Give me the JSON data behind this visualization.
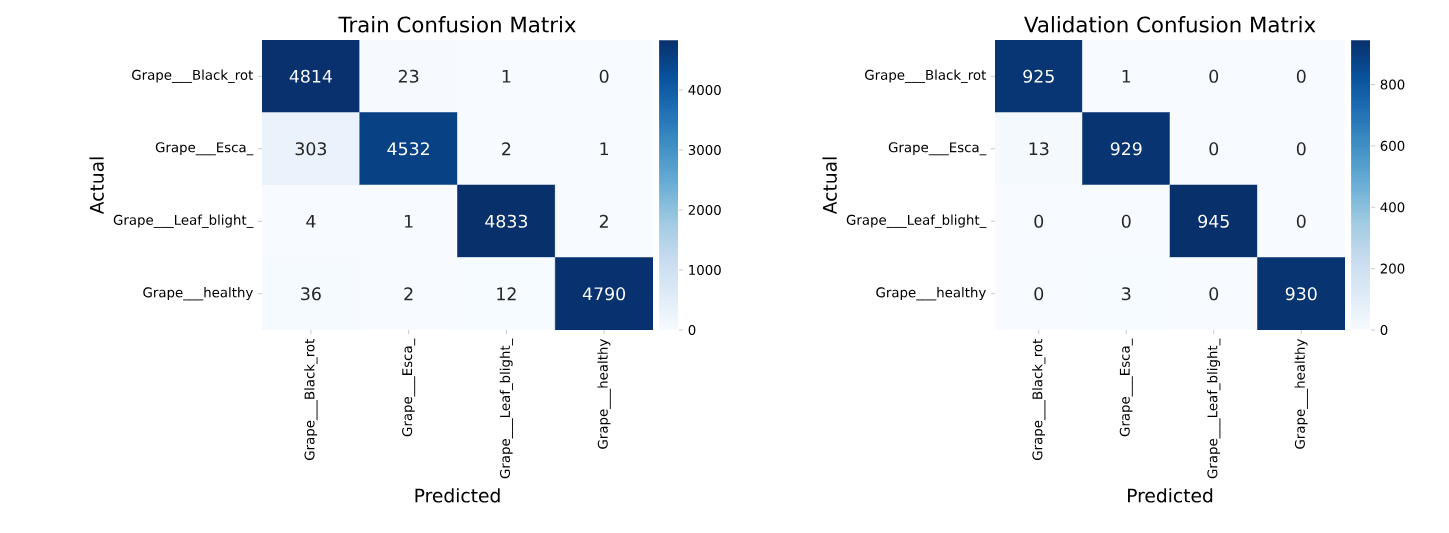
{
  "chart_data": [
    {
      "type": "heatmap",
      "title": "Train Confusion Matrix",
      "xlabel": "Predicted",
      "ylabel": "Actual",
      "categories": [
        "Grape___Black_rot",
        "Grape___Esca_",
        "Grape___Leaf_blight_",
        "Grape___healthy"
      ],
      "y_categories": [
        "Grape___Black_rot",
        "Grape___Esca_",
        "Grape___Leaf_blight_",
        "Grape___healthy"
      ],
      "cells": [
        [
          4814,
          23,
          1,
          0
        ],
        [
          303,
          4532,
          2,
          1
        ],
        [
          4,
          1,
          4833,
          2
        ],
        [
          36,
          2,
          12,
          4790
        ]
      ],
      "clim": [
        0,
        4833
      ],
      "cticks": [
        0,
        1000,
        2000,
        3000,
        4000
      ],
      "data_labels": true
    },
    {
      "type": "heatmap",
      "title": "Validation Confusion Matrix",
      "xlabel": "Predicted",
      "ylabel": "Actual",
      "categories": [
        "Grape___Black_rot",
        "Grape___Esca_",
        "Grape___Leaf_blight_",
        "Grape___healthy"
      ],
      "y_categories": [
        "Grape___Black_rot",
        "Grape___Esca_",
        "Grape___Leaf_blight_",
        "Grape___healthy"
      ],
      "cells": [
        [
          925,
          1,
          0,
          0
        ],
        [
          13,
          929,
          0,
          0
        ],
        [
          0,
          0,
          945,
          0
        ],
        [
          0,
          3,
          0,
          930
        ]
      ],
      "clim": [
        0,
        945
      ],
      "cticks": [
        0,
        200,
        400,
        600,
        800
      ],
      "data_labels": true
    }
  ]
}
